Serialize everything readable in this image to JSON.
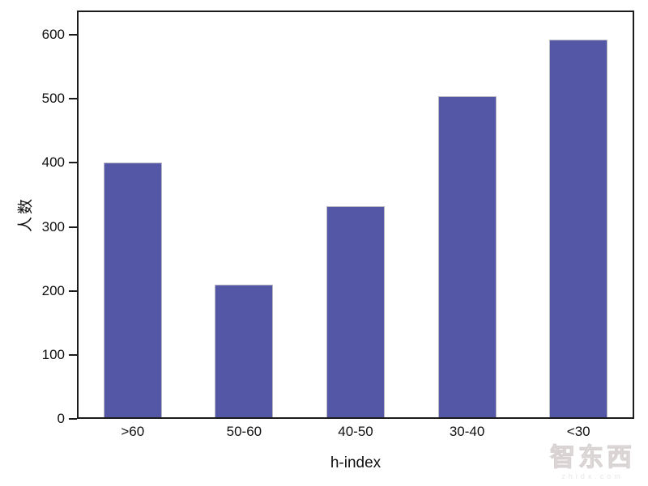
{
  "chart_data": {
    "type": "bar",
    "categories": [
      ">60",
      "50-60",
      "40-50",
      "30-40",
      "<30"
    ],
    "values": [
      398,
      207,
      330,
      502,
      590
    ],
    "title": "",
    "xlabel": "h-index",
    "ylabel": "人数",
    "yticks": [
      0,
      100,
      200,
      300,
      400,
      500,
      600
    ],
    "ylim": [
      0,
      638
    ],
    "bar_color": "#5457a6",
    "bar_border_color": "#b9b9c6",
    "axis_color": "#1c1c1c",
    "grid": false,
    "legend_position": "none"
  },
  "watermark": {
    "logo": "智东西",
    "url": "zhidx.com"
  }
}
